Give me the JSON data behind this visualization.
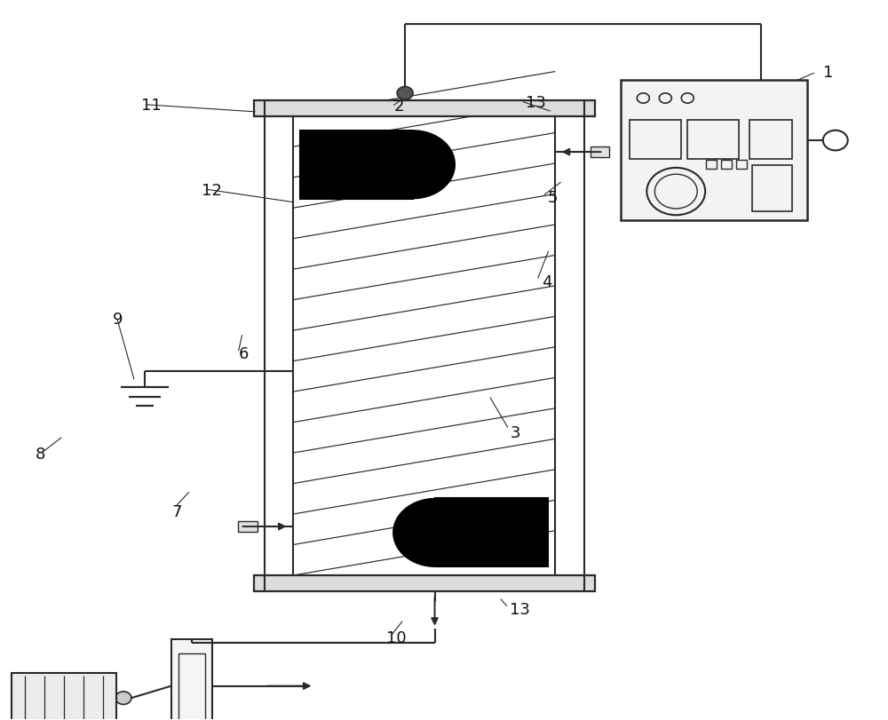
{
  "bg_color": "#ffffff",
  "lc": "#2a2a2a",
  "lw": 1.5,
  "fig_w": 10.0,
  "fig_h": 8.11,
  "dpi": 100
}
